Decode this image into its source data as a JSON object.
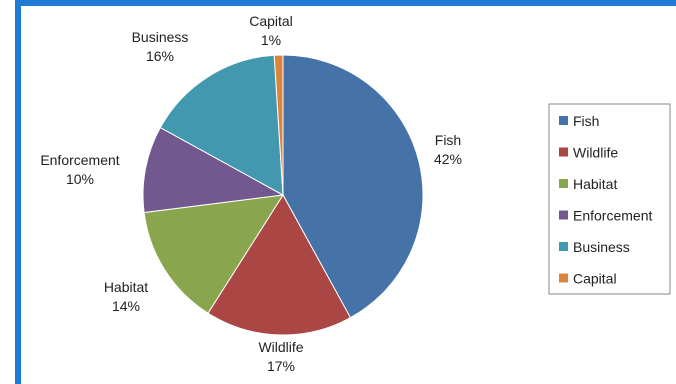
{
  "chart_data": {
    "type": "pie",
    "title": "",
    "slices": [
      {
        "name": "Fish",
        "value": 42,
        "label": "42%",
        "color": "#4572a7"
      },
      {
        "name": "Wildlife",
        "value": 17,
        "label": "17%",
        "color": "#aa4643"
      },
      {
        "name": "Habitat",
        "value": 14,
        "label": "14%",
        "color": "#89a54e"
      },
      {
        "name": "Enforcement",
        "value": 10,
        "label": "10%",
        "color": "#71588f"
      },
      {
        "name": "Business",
        "value": 16,
        "label": "16%",
        "color": "#4198af"
      },
      {
        "name": "Capital",
        "value": 1,
        "label": "1%",
        "color": "#db843d"
      }
    ],
    "legend_position": "right",
    "start_angle": "top",
    "direction": "clockwise"
  }
}
